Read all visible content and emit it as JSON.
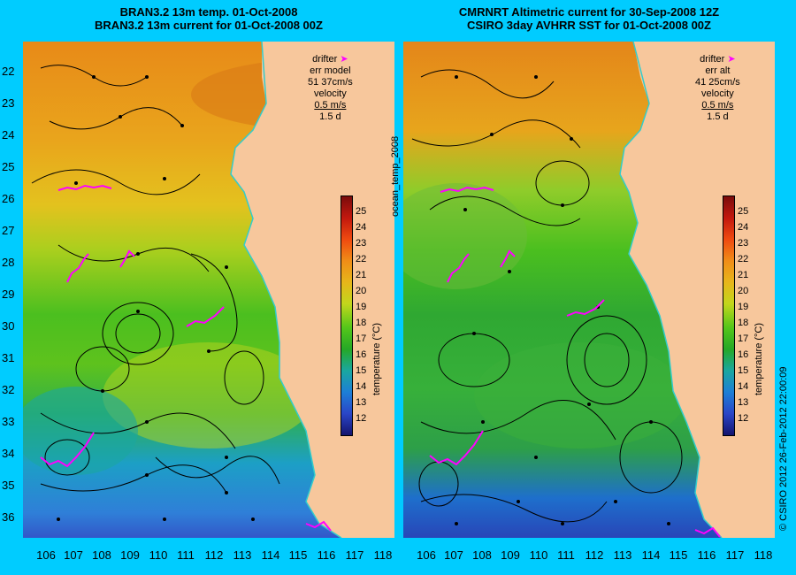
{
  "left_panel": {
    "title_line1": "BRAN3.2 13m temp. 01-Oct-2008",
    "title_line2": "BRAN3.2 13m current for 01-Oct-2008 00Z",
    "legend": {
      "drifter_label": "drifter",
      "err_label": "err model",
      "err_value": "51 37cm/s",
      "velocity_label": "velocity",
      "velocity_value": "0.5 m/s",
      "duration_value": "1.5 d"
    }
  },
  "right_panel": {
    "title_line1": "CMRNRT Altimetric current for 30-Sep-2008 12Z",
    "title_line2": "CSIRO 3day AVHRR SST for 01-Oct-2008 00Z",
    "legend": {
      "drifter_label": "drifter",
      "err_label": "err alt",
      "err_value": "41 25cm/s",
      "velocity_label": "velocity",
      "velocity_value": "0.5 m/s",
      "duration_value": "1.5 d"
    }
  },
  "colorbar": {
    "label": "temperature (°C)",
    "ticks": [
      "25",
      "24",
      "23",
      "22",
      "21",
      "20",
      "19",
      "18",
      "17",
      "16",
      "15",
      "14",
      "13",
      "12"
    ]
  },
  "latitude_labels": [
    "22",
    "23",
    "24",
    "25",
    "26",
    "27",
    "28",
    "29",
    "30",
    "31",
    "32",
    "33",
    "34",
    "35",
    "36"
  ],
  "longitude_labels": [
    "106",
    "107",
    "108",
    "109",
    "110",
    "111",
    "112",
    "113",
    "114",
    "115",
    "116",
    "117",
    "118"
  ],
  "side_text": {
    "product": "ocean_temp_2008",
    "credit": "© CSIRO 2012   26-Feb-2012 22:00:09"
  },
  "colors": {
    "background": "#00ccff",
    "land": "#f7c79c",
    "drifter": "#ff00ff",
    "coastline_cyan": "#33cccc"
  }
}
